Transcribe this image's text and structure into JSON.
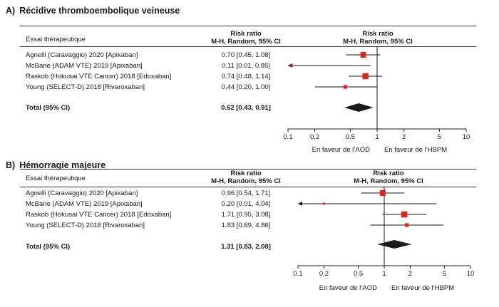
{
  "panels": [
    {
      "letter": "A)",
      "title": "Récidive thromboembolique veineuse",
      "study_header": "Essai thérapeutique",
      "rr_header_1": "Risk ratio",
      "rr_header_2": "M-H, Random, 95% CI",
      "plot_header_1": "Risk ratio",
      "plot_header_2": "M-H, Random, 95% CI",
      "favours_left": "En faveur de l’AOD",
      "favours_right": "En faveur de l’HBPM"
    },
    {
      "letter": "B)",
      "title": "Hémorragie majeure",
      "study_header": "Essai thérapeutique",
      "rr_header_1": "Risk ratio",
      "rr_header_2": "M-H, Random, 95% CI",
      "plot_header_1": "Risk ratio",
      "plot_header_2": "M-H, Random, 95% CI",
      "favours_left": "En faveur de l’AOD",
      "favours_right": "En faveur de l’HBPM"
    }
  ],
  "chart_data": [
    {
      "type": "forest",
      "title": "Récidive thromboembolique veineuse",
      "xscale": "log",
      "xlim": [
        0.1,
        10
      ],
      "xticks": [
        "0.1",
        "0.2",
        "0.5",
        "1",
        "2",
        "5",
        "10"
      ],
      "colors": {
        "box": "#e2231a",
        "diamond": "#1a1a1a",
        "line": "#1a1a1a"
      },
      "studies": [
        {
          "name": "Agnelli (Caravaggio) 2020 [Apixaban]",
          "rr": 0.7,
          "lo": 0.45,
          "hi": 1.08,
          "label": "0.70 [0.45, 1.08]",
          "weight": 0.75
        },
        {
          "name": "McBane (ADAM VTE) 2019 [Apixaban]",
          "rr": 0.11,
          "lo": 0.01,
          "hi": 0.85,
          "label": "0.11 [0.01, 0.85]",
          "weight": 0.15,
          "arrow_left": true
        },
        {
          "name": "Raskob (Hokusai VTE Cancer) 2018 [Edoxaban]",
          "rr": 0.74,
          "lo": 0.48,
          "hi": 1.14,
          "label": "0.74 [0.48, 1.14]",
          "weight": 0.8
        },
        {
          "name": "Young (SELECT-D) 2018 [Rivaroxaban]",
          "rr": 0.44,
          "lo": 0.2,
          "hi": 1.0,
          "label": "0.44 [0.20, 1.00]",
          "weight": 0.4
        }
      ],
      "total": {
        "name": "Total (95% CI)",
        "rr": 0.62,
        "lo": 0.43,
        "hi": 0.91,
        "label": "0.62 [0.43, 0.91]"
      }
    },
    {
      "type": "forest",
      "title": "Hémorragie majeure",
      "xscale": "log",
      "xlim": [
        0.1,
        10
      ],
      "xticks": [
        "0.1",
        "0.2",
        "0.5",
        "1",
        "2",
        "5",
        "10"
      ],
      "colors": {
        "box": "#e2231a",
        "diamond": "#1a1a1a",
        "line": "#1a1a1a"
      },
      "studies": [
        {
          "name": "Agnelli (Caravaggio) 2020 [Apixaban]",
          "rr": 0.96,
          "lo": 0.54,
          "hi": 1.71,
          "label": "0.96 [0.54, 1.71]",
          "weight": 0.75
        },
        {
          "name": "McBane (ADAM VTE) 2019 [Apixaban]",
          "rr": 0.2,
          "lo": 0.01,
          "hi": 4.04,
          "label": "0.20 [0.01, 4.04]",
          "weight": 0.12,
          "arrow_left": true
        },
        {
          "name": "Raskob (Hokusai VTE Cancer) 2018 [Edoxaban]",
          "rr": 1.71,
          "lo": 0.95,
          "hi": 3.08,
          "label": "1.71 [0.95, 3.08]",
          "weight": 0.8
        },
        {
          "name": "Young (SELECT-D) 2018 [Rivaroxaban]",
          "rr": 1.83,
          "lo": 0.69,
          "hi": 4.86,
          "label": "1.83 [0.69, 4.86]",
          "weight": 0.4
        }
      ],
      "total": {
        "name": "Total (95% CI)",
        "rr": 1.31,
        "lo": 0.83,
        "hi": 2.08,
        "label": "1.31 [0.83, 2.08]"
      }
    }
  ]
}
